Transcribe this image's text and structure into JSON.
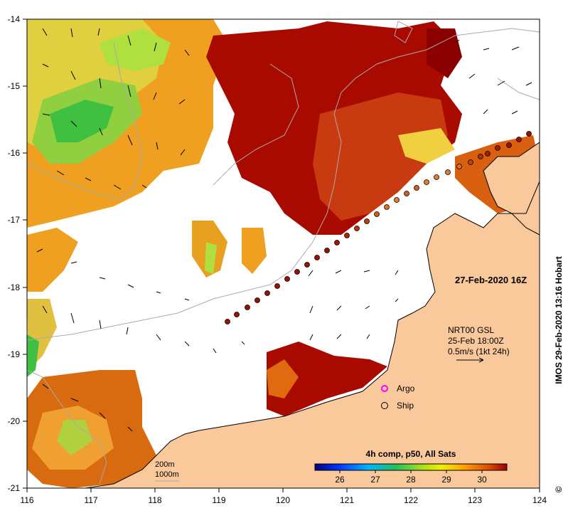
{
  "map": {
    "lon_range": [
      116,
      124
    ],
    "lat_range": [
      -21,
      -14
    ],
    "x_ticks": [
      "116",
      "117",
      "118",
      "119",
      "120",
      "121",
      "122",
      "123",
      "124"
    ],
    "y_ticks": [
      "-14",
      "-15",
      "-16",
      "-17",
      "-18",
      "-19",
      "-20",
      "-21"
    ],
    "land_color": "#f9c89b",
    "no_data_color": "#ffffff",
    "contour_color": "#aaaaaa"
  },
  "timestamp": "27-Feb-2020 16Z",
  "current_info": {
    "line1": "NRT00 GSL",
    "line2": "25-Feb 18:00Z",
    "line3": "0.5m/s (1kt 24h)"
  },
  "legend": {
    "argo_label": "Argo",
    "argo_color": "#ff00ff",
    "ship_label": "Ship"
  },
  "colorbar": {
    "title": "4h comp, p50, All Sats",
    "min": 25.3,
    "max": 30.7,
    "ticks": [
      "26",
      "27",
      "28",
      "29",
      "30"
    ]
  },
  "bathymetry": {
    "label_200": "200m",
    "label_1000": "1000m"
  },
  "side_label": "IMOS 29-Feb-2020 13:16 Hobart",
  "copyright_icon": "©"
}
